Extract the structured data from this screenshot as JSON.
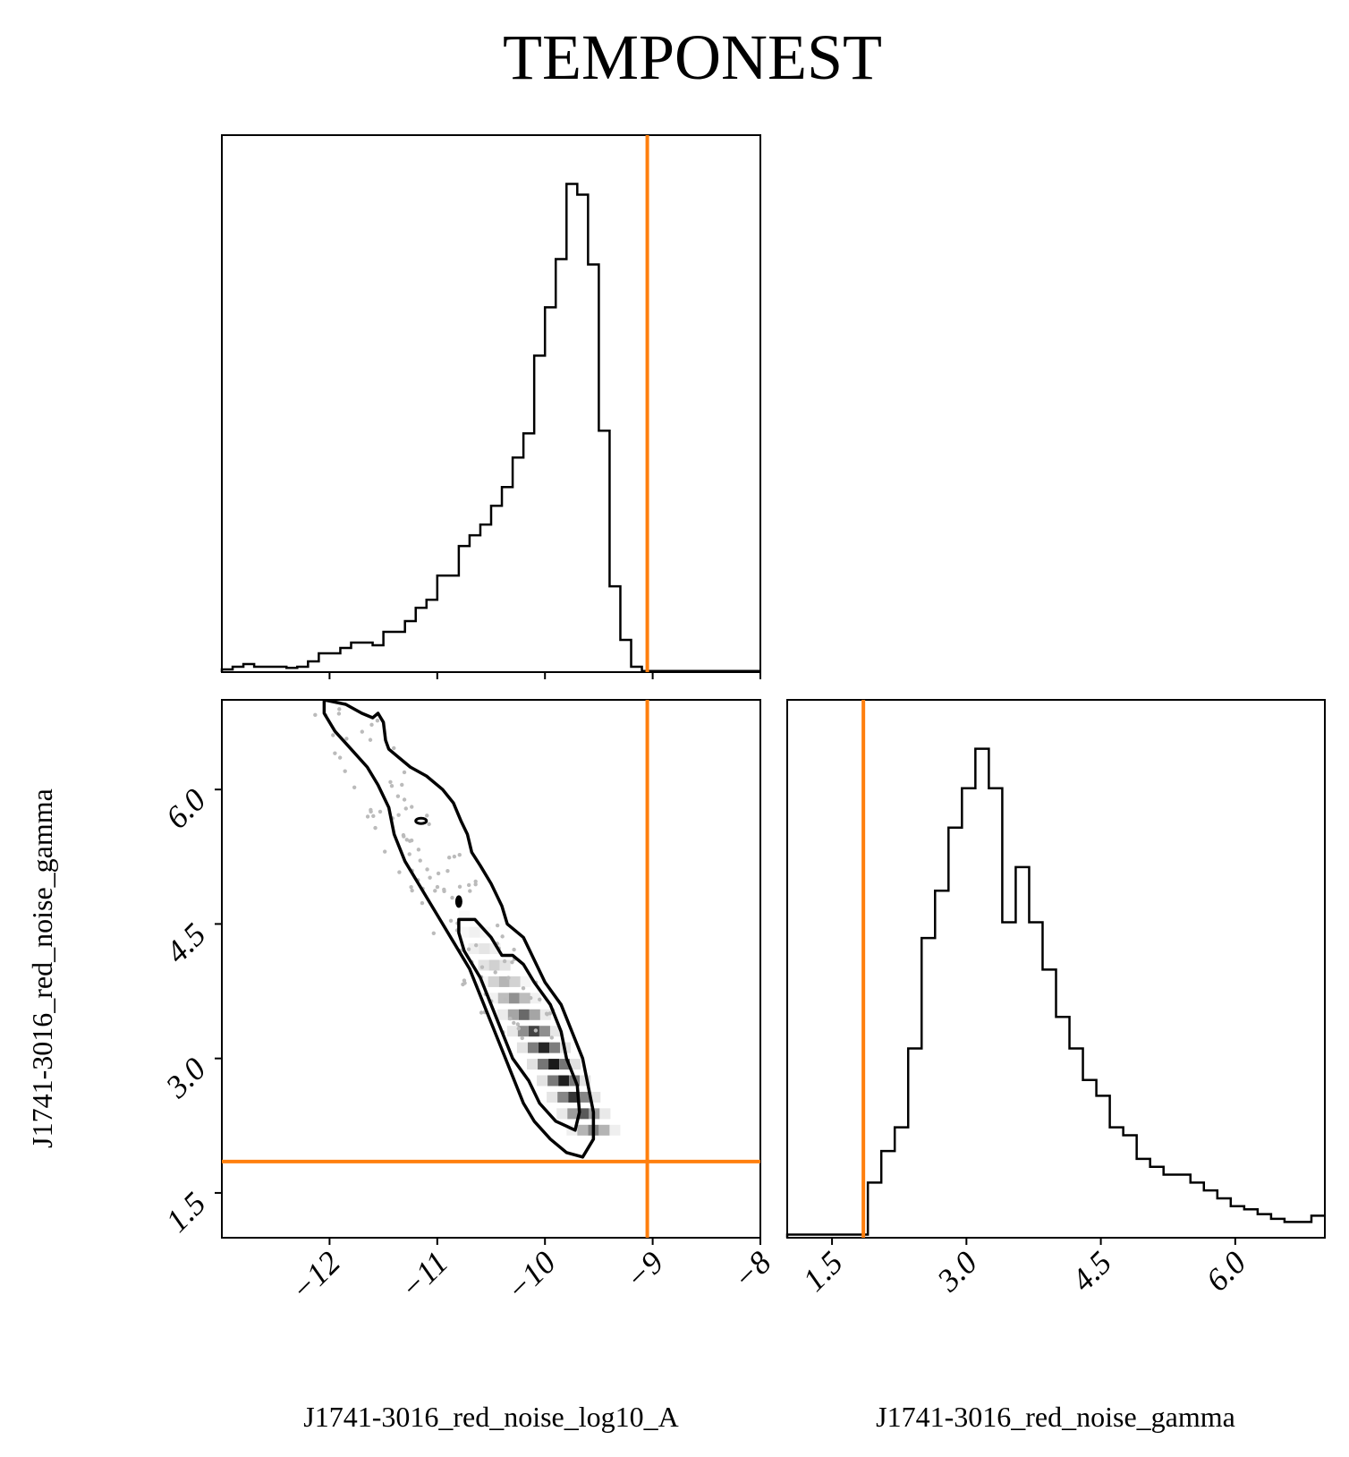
{
  "title": "TEMPONEST",
  "colors": {
    "truth": "#ff7f0e",
    "hist": "#000000",
    "contour": "#000000"
  },
  "chart_data": [
    {
      "type": "histogram",
      "panel": "marginal-log10A",
      "bin_edges": [
        -13.0,
        -12.9,
        -12.8,
        -12.7,
        -12.6,
        -12.5,
        -12.4,
        -12.3,
        -12.2,
        -12.1,
        -12.0,
        -11.9,
        -11.8,
        -11.7,
        -11.6,
        -11.5,
        -11.4,
        -11.3,
        -11.2,
        -11.1,
        -11.0,
        -10.9,
        -10.8,
        -10.7,
        -10.6,
        -10.5,
        -10.4,
        -10.3,
        -10.2,
        -10.1,
        -10.0,
        -9.9,
        -9.8,
        -9.7,
        -9.6,
        -9.5,
        -9.4,
        -9.3,
        -9.2,
        -9.1,
        -9.0,
        -8.9,
        -8.8,
        -8.7,
        -8.6,
        -8.5,
        -8.4,
        -8.3,
        -8.2,
        -8.1,
        -8.0
      ],
      "counts": [
        0.5,
        1.0,
        1.5,
        1.0,
        1.0,
        1.0,
        0.8,
        1.0,
        2.0,
        3.5,
        3.5,
        4.5,
        5.5,
        5.5,
        5.0,
        7.5,
        7.5,
        9.5,
        12.0,
        13.5,
        18.0,
        18.0,
        23.5,
        25.5,
        27.5,
        31.0,
        34.5,
        40.0,
        44.5,
        59.0,
        68.0,
        77.0,
        91.0,
        89.0,
        76.0,
        45.0,
        16.0,
        6.0,
        1.0,
        0.2,
        0.2,
        0.2,
        0.2,
        0.2,
        0.2,
        0.2,
        0.2,
        0.2,
        0.2,
        0.2
      ],
      "xlim": [
        -13.0,
        -8.0
      ],
      "truth": -9.05
    },
    {
      "type": "contour",
      "panel": "joint-log10A-gamma",
      "xlim": [
        -13.0,
        -8.0
      ],
      "ylim": [
        1.0,
        7.0
      ],
      "truth_x": -9.05,
      "truth_y": 1.85,
      "contours": [
        {
          "level": "outer",
          "points": [
            [
              -12.05,
              7.0
            ],
            [
              -11.85,
              6.95
            ],
            [
              -11.7,
              6.85
            ],
            [
              -11.6,
              6.8
            ],
            [
              -11.55,
              6.85
            ],
            [
              -11.5,
              6.75
            ],
            [
              -11.48,
              6.55
            ],
            [
              -11.45,
              6.45
            ],
            [
              -11.35,
              6.35
            ],
            [
              -11.25,
              6.25
            ],
            [
              -11.1,
              6.15
            ],
            [
              -10.95,
              6.0
            ],
            [
              -10.85,
              5.85
            ],
            [
              -10.78,
              5.65
            ],
            [
              -10.72,
              5.5
            ],
            [
              -10.68,
              5.3
            ],
            [
              -10.6,
              5.15
            ],
            [
              -10.5,
              4.95
            ],
            [
              -10.4,
              4.7
            ],
            [
              -10.35,
              4.5
            ],
            [
              -10.2,
              4.35
            ],
            [
              -10.1,
              4.1
            ],
            [
              -10.0,
              3.85
            ],
            [
              -9.85,
              3.6
            ],
            [
              -9.75,
              3.3
            ],
            [
              -9.65,
              3.0
            ],
            [
              -9.6,
              2.7
            ],
            [
              -9.55,
              2.4
            ],
            [
              -9.55,
              2.1
            ],
            [
              -9.65,
              1.9
            ],
            [
              -9.8,
              1.95
            ],
            [
              -9.95,
              2.1
            ],
            [
              -10.1,
              2.3
            ],
            [
              -10.2,
              2.5
            ],
            [
              -10.3,
              2.8
            ],
            [
              -10.4,
              3.1
            ],
            [
              -10.5,
              3.4
            ],
            [
              -10.6,
              3.7
            ],
            [
              -10.7,
              4.0
            ],
            [
              -10.85,
              4.3
            ],
            [
              -11.0,
              4.6
            ],
            [
              -11.15,
              4.9
            ],
            [
              -11.3,
              5.2
            ],
            [
              -11.4,
              5.5
            ],
            [
              -11.45,
              5.8
            ],
            [
              -11.55,
              6.05
            ],
            [
              -11.65,
              6.25
            ],
            [
              -11.8,
              6.45
            ],
            [
              -11.95,
              6.65
            ],
            [
              -12.05,
              6.85
            ],
            [
              -12.05,
              7.0
            ]
          ]
        },
        {
          "level": "inner",
          "points": [
            [
              -10.8,
              4.55
            ],
            [
              -10.65,
              4.55
            ],
            [
              -10.5,
              4.35
            ],
            [
              -10.4,
              4.15
            ],
            [
              -10.3,
              4.15
            ],
            [
              -10.2,
              4.05
            ],
            [
              -10.1,
              3.85
            ],
            [
              -9.95,
              3.6
            ],
            [
              -9.85,
              3.3
            ],
            [
              -9.8,
              3.0
            ],
            [
              -9.7,
              2.7
            ],
            [
              -9.68,
              2.4
            ],
            [
              -9.72,
              2.2
            ],
            [
              -9.9,
              2.3
            ],
            [
              -10.05,
              2.5
            ],
            [
              -10.15,
              2.75
            ],
            [
              -10.3,
              3.0
            ],
            [
              -10.4,
              3.3
            ],
            [
              -10.5,
              3.6
            ],
            [
              -10.6,
              3.9
            ],
            [
              -10.75,
              4.2
            ],
            [
              -10.8,
              4.4
            ],
            [
              -10.8,
              4.55
            ]
          ]
        }
      ]
    },
    {
      "type": "histogram",
      "panel": "marginal-gamma",
      "bin_edges": [
        1.0,
        1.15,
        1.3,
        1.45,
        1.6,
        1.75,
        1.9,
        2.05,
        2.2,
        2.35,
        2.5,
        2.65,
        2.8,
        2.95,
        3.1,
        3.25,
        3.4,
        3.55,
        3.7,
        3.85,
        4.0,
        4.15,
        4.3,
        4.45,
        4.6,
        4.75,
        4.9,
        5.05,
        5.2,
        5.35,
        5.5,
        5.65,
        5.8,
        5.95,
        6.1,
        6.25,
        6.4,
        6.55,
        6.7,
        6.85,
        7.0
      ],
      "counts": [
        0.2,
        0.2,
        0.2,
        0.2,
        0.2,
        0.2,
        3.5,
        5.5,
        7.0,
        12.0,
        19.0,
        22.0,
        26.0,
        28.5,
        31.0,
        28.5,
        20.0,
        23.5,
        20.0,
        17.0,
        14.0,
        12.0,
        10.0,
        9.0,
        7.0,
        6.5,
        5.0,
        4.5,
        4.0,
        4.0,
        3.5,
        3.0,
        2.5,
        2.0,
        1.8,
        1.5,
        1.2,
        1.0,
        1.0,
        1.4
      ],
      "xlim": [
        1.0,
        7.0
      ],
      "truth": 1.85
    }
  ],
  "axes": {
    "x_log10A_ticks": [
      "−12",
      "−11",
      "−10",
      "−9",
      "−8"
    ],
    "x_log10A_tick_values": [
      -12,
      -11,
      -10,
      -9,
      -8
    ],
    "gamma_ticks": [
      "1.5",
      "3.0",
      "4.5",
      "6.0"
    ],
    "gamma_tick_values": [
      1.5,
      3.0,
      4.5,
      6.0
    ],
    "xlabel_left": "J1741-3016_red_noise_log10_A",
    "xlabel_right": "J1741-3016_red_noise_gamma",
    "ylabel": "J1741-3016_red_noise_gamma"
  }
}
